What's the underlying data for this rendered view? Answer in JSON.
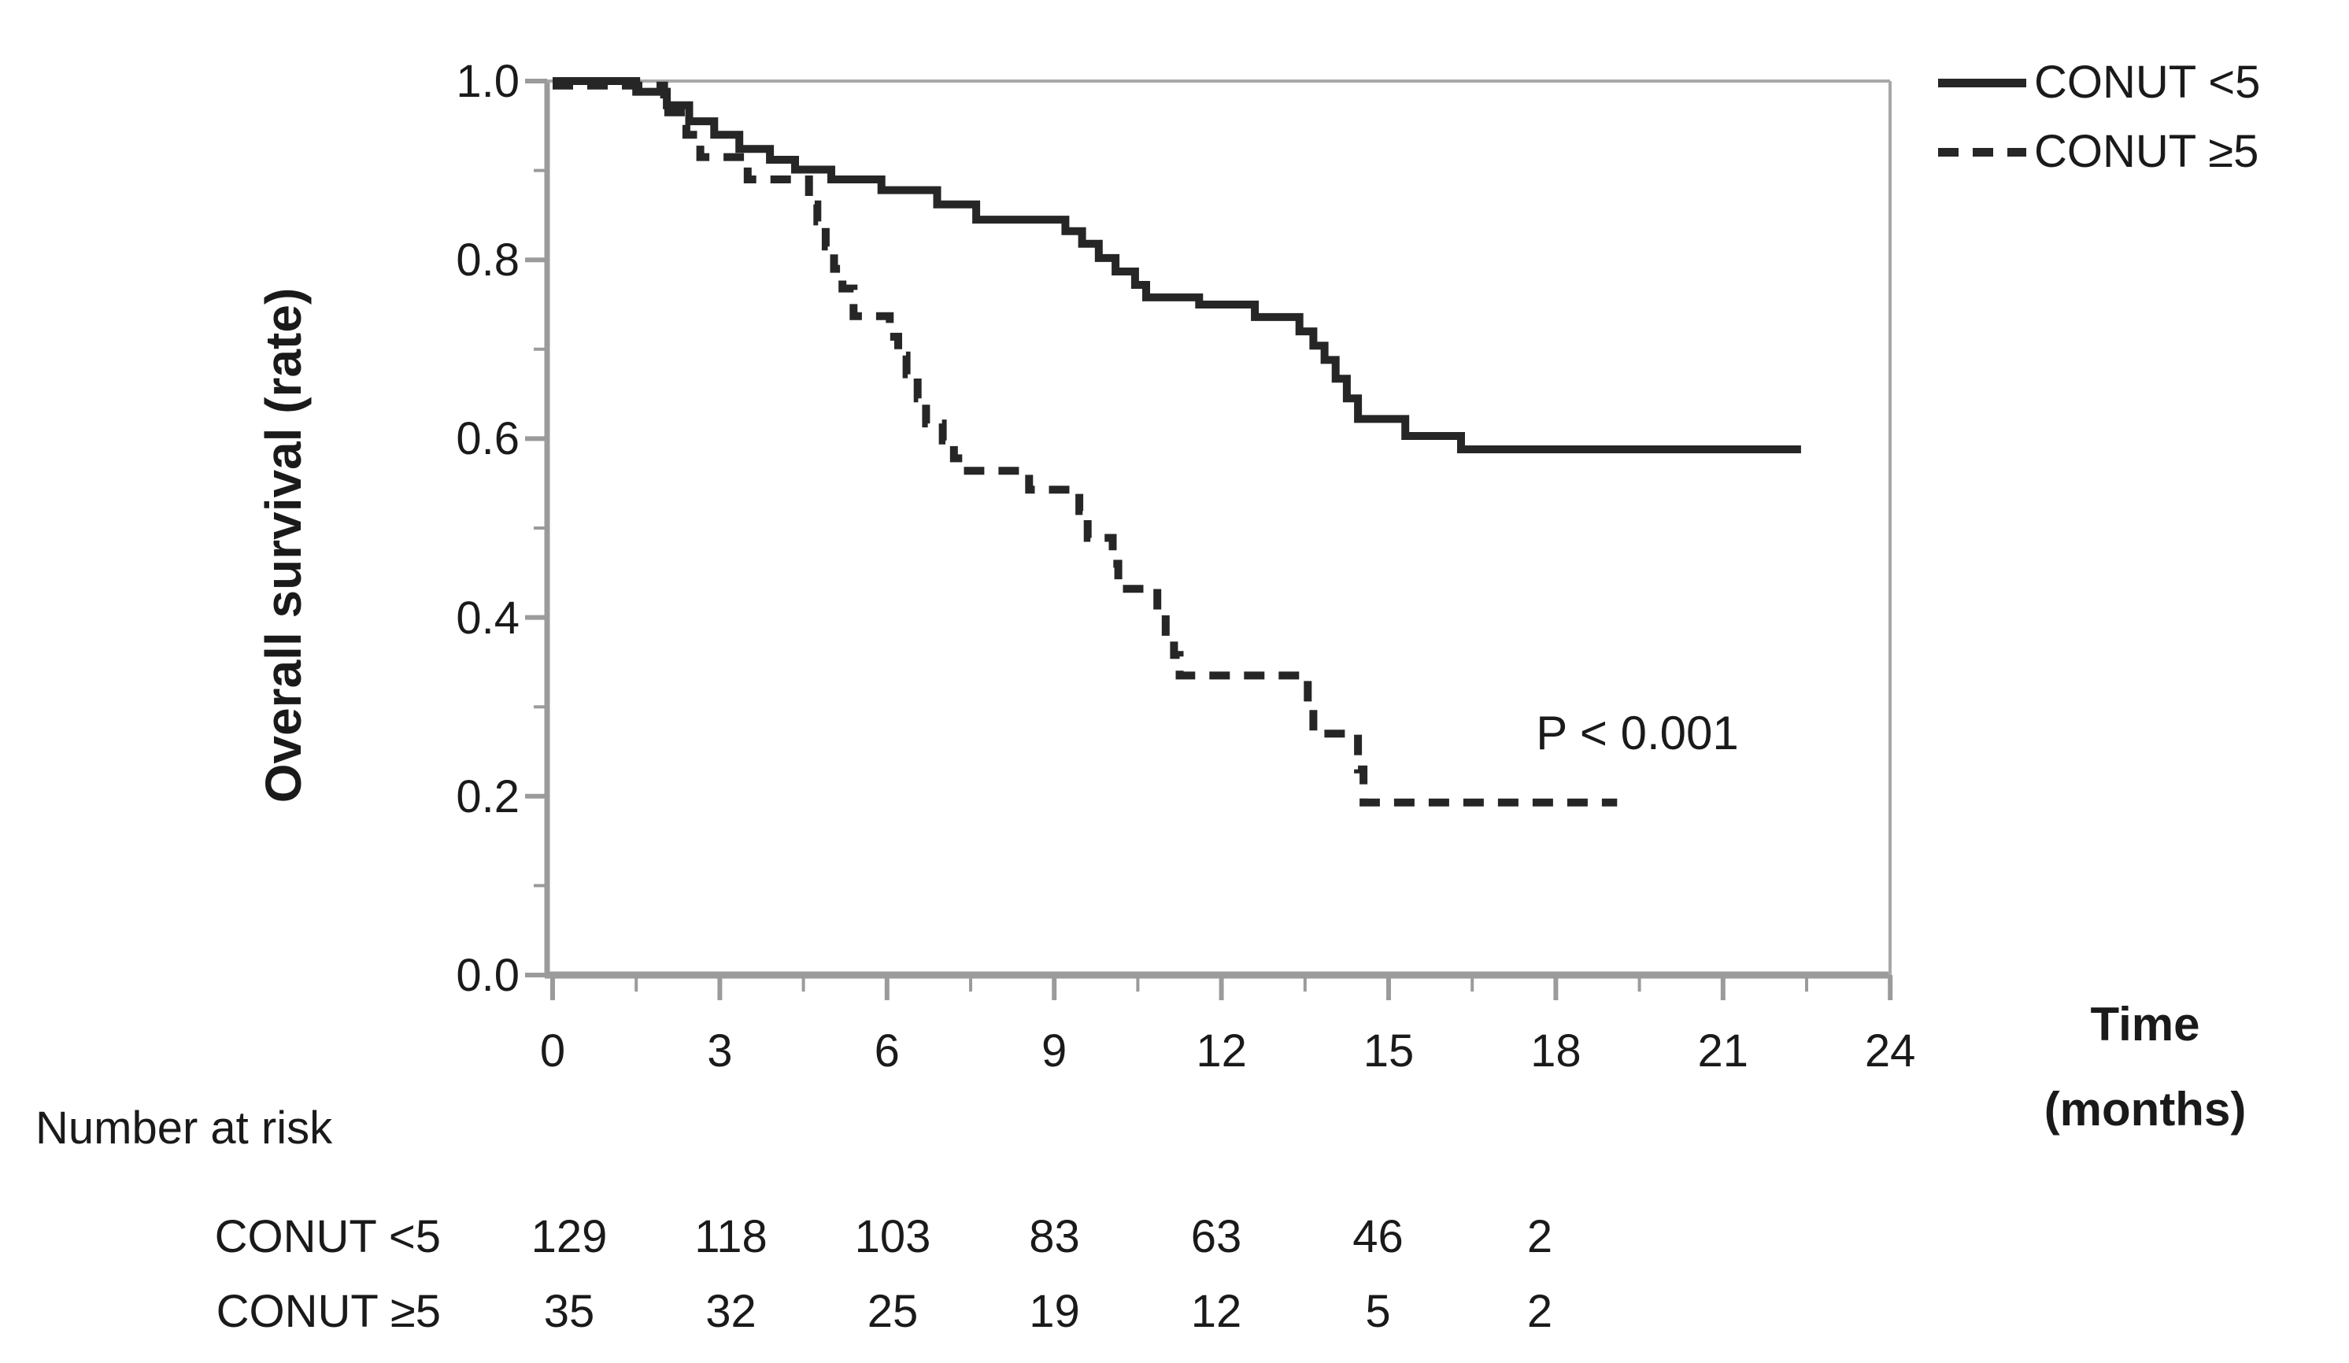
{
  "figure": {
    "background": "#ffffff",
    "y_axis_title": "Overall survival (rate)",
    "x_axis_title": "Time (months)",
    "x_axis_title_lines": [
      "Time",
      "(months)"
    ],
    "p_value_label": "P < 0.001"
  },
  "colors": {
    "curve": "#262626",
    "frame": "#a8a8a8",
    "axis": "#9b9b9b",
    "text": "#1a1a1a"
  },
  "legend": {
    "position": "top-right",
    "items": [
      {
        "label": "CONUT <5",
        "line": "solid"
      },
      {
        "label": "CONUT ≥5",
        "line": "dashed"
      }
    ]
  },
  "chart_data": {
    "type": "line",
    "subtype": "kaplan-meier-step",
    "title": "",
    "xlabel": "Time (months)",
    "ylabel": "Overall survival (rate)",
    "xlim": [
      0,
      24
    ],
    "ylim": [
      0.0,
      1.0
    ],
    "x_ticks": [
      0,
      3,
      6,
      9,
      12,
      15,
      18,
      21,
      24
    ],
    "x_tick_labels": [
      "0",
      "3",
      "6",
      "9",
      "12",
      "15",
      "18",
      "21",
      "24"
    ],
    "y_ticks": [
      1.0,
      0.8,
      0.6,
      0.4,
      0.2,
      0.0
    ],
    "y_tick_labels": [
      "1.0",
      "0.8",
      "0.6",
      "0.4",
      "0.2",
      "0.0"
    ],
    "x_minor_ticks": [
      1.5,
      4.5,
      7.5,
      10.5,
      13.5,
      16.5,
      19.5,
      22.5
    ],
    "y_minor_ticks": [
      0.9,
      0.7,
      0.5,
      0.3,
      0.1
    ],
    "grid": false,
    "legend_position": "top-right",
    "annotation": {
      "text": "P < 0.001",
      "x_month": 19.4,
      "y_rate": 0.27
    },
    "series": [
      {
        "name": "CONUT <5",
        "line_style": "solid",
        "start": [
          0,
          1.0
        ],
        "end_month": 22.4,
        "steps": [
          [
            1.5,
            0.988
          ],
          [
            2.05,
            0.973
          ],
          [
            2.45,
            0.955
          ],
          [
            2.9,
            0.94
          ],
          [
            3.35,
            0.924
          ],
          [
            3.9,
            0.912
          ],
          [
            4.35,
            0.901
          ],
          [
            5.0,
            0.89
          ],
          [
            5.9,
            0.878
          ],
          [
            6.9,
            0.862
          ],
          [
            7.6,
            0.845
          ],
          [
            9.2,
            0.832
          ],
          [
            9.5,
            0.818
          ],
          [
            9.8,
            0.802
          ],
          [
            10.1,
            0.787
          ],
          [
            10.45,
            0.772
          ],
          [
            10.65,
            0.758
          ],
          [
            11.6,
            0.75
          ],
          [
            12.6,
            0.736
          ],
          [
            13.4,
            0.72
          ],
          [
            13.65,
            0.704
          ],
          [
            13.85,
            0.688
          ],
          [
            14.05,
            0.667
          ],
          [
            14.25,
            0.645
          ],
          [
            14.45,
            0.622
          ],
          [
            15.3,
            0.603
          ],
          [
            16.3,
            0.588
          ]
        ]
      },
      {
        "name": "CONUT ≥5",
        "line_style": "dashed",
        "start": [
          0,
          0.995
        ],
        "end_month": 19.1,
        "steps": [
          [
            2.0,
            0.965
          ],
          [
            2.4,
            0.94
          ],
          [
            2.65,
            0.915
          ],
          [
            3.5,
            0.89
          ],
          [
            4.6,
            0.862
          ],
          [
            4.75,
            0.843
          ],
          [
            4.9,
            0.815
          ],
          [
            5.05,
            0.79
          ],
          [
            5.2,
            0.768
          ],
          [
            5.4,
            0.737
          ],
          [
            6.05,
            0.714
          ],
          [
            6.2,
            0.693
          ],
          [
            6.35,
            0.672
          ],
          [
            6.55,
            0.645
          ],
          [
            6.7,
            0.617
          ],
          [
            7.0,
            0.598
          ],
          [
            7.2,
            0.578
          ],
          [
            7.45,
            0.564
          ],
          [
            8.55,
            0.543
          ],
          [
            9.45,
            0.519
          ],
          [
            9.6,
            0.489
          ],
          [
            10.05,
            0.46
          ],
          [
            10.15,
            0.432
          ],
          [
            10.85,
            0.405
          ],
          [
            11.0,
            0.376
          ],
          [
            11.15,
            0.358
          ],
          [
            11.25,
            0.335
          ],
          [
            13.55,
            0.298
          ],
          [
            13.65,
            0.27
          ],
          [
            14.45,
            0.23
          ],
          [
            14.55,
            0.193
          ]
        ]
      }
    ],
    "number_at_risk": {
      "title": "Number at risk",
      "months": [
        0,
        3,
        6,
        9,
        12,
        15,
        18
      ],
      "rows": [
        {
          "label": "CONUT <5",
          "values": [
            "129",
            "118",
            "103",
            "83",
            "63",
            "46",
            "2"
          ]
        },
        {
          "label": "CONUT ≥5",
          "values": [
            "35",
            "32",
            "25",
            "19",
            "12",
            "5",
            "2"
          ]
        }
      ]
    }
  }
}
